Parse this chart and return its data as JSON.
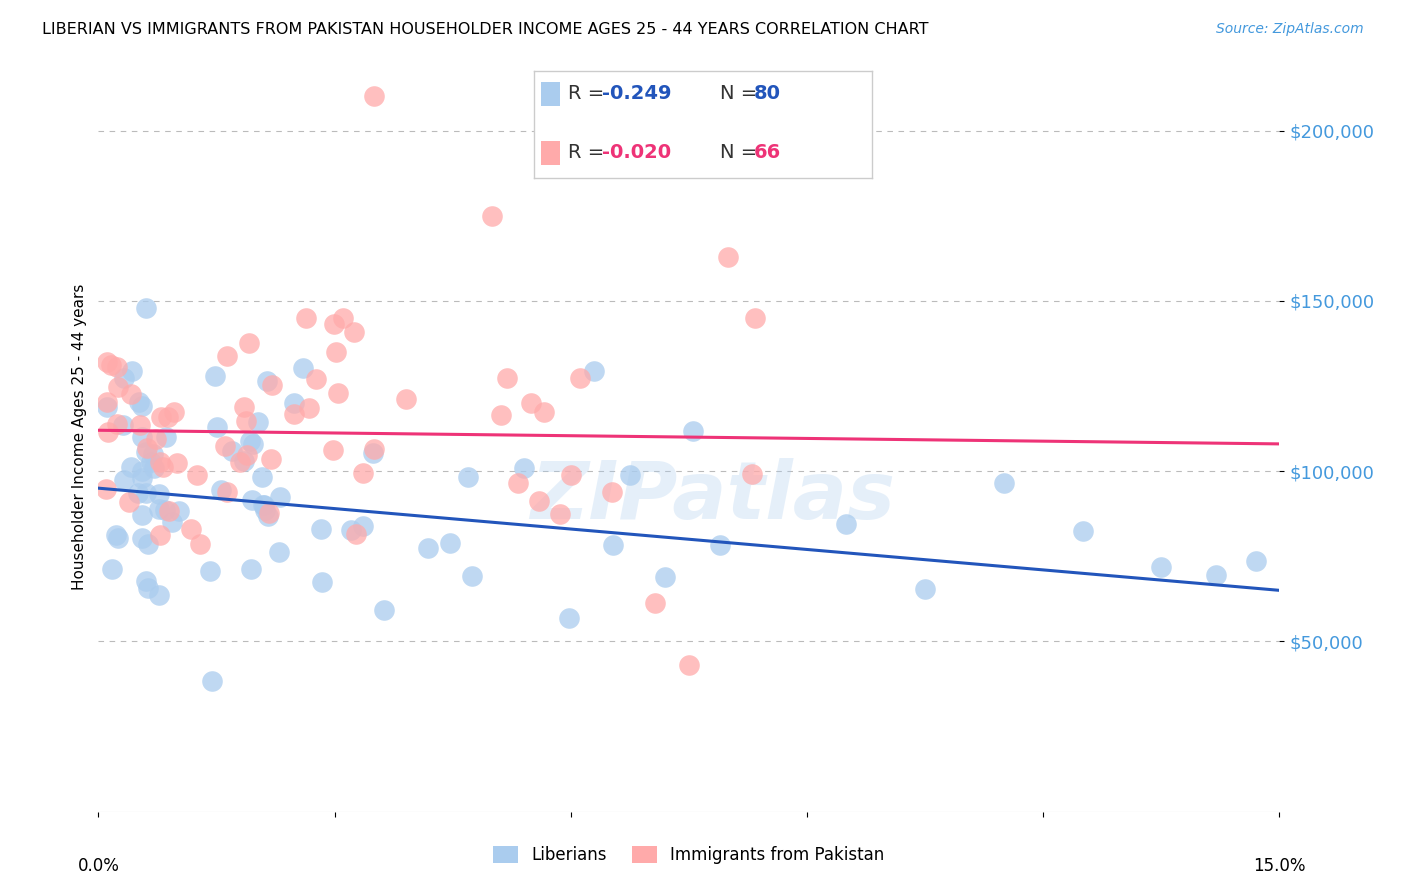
{
  "title": "LIBERIAN VS IMMIGRANTS FROM PAKISTAN HOUSEHOLDER INCOME AGES 25 - 44 YEARS CORRELATION CHART",
  "source": "Source: ZipAtlas.com",
  "ylabel": "Householder Income Ages 25 - 44 years",
  "xlim": [
    0.0,
    15.0
  ],
  "ylim": [
    0,
    220000
  ],
  "yticks": [
    50000,
    100000,
    150000,
    200000
  ],
  "ytick_labels": [
    "$50,000",
    "$100,000",
    "$150,000",
    "$200,000"
  ],
  "color_blue": "#AACCEE",
  "color_pink": "#FFAAAA",
  "line_color_blue": "#2255BB",
  "line_color_pink": "#EE3377",
  "watermark": "ZIPatlas",
  "background": "#FFFFFF",
  "legend_label1": "Liberians",
  "legend_label2": "Immigrants from Pakistan",
  "blue_line_x0": 0.0,
  "blue_line_y0": 95000,
  "blue_line_x1": 15.0,
  "blue_line_y1": 65000,
  "pink_line_x0": 0.0,
  "pink_line_y0": 112000,
  "pink_line_x1": 15.0,
  "pink_line_y1": 108000
}
